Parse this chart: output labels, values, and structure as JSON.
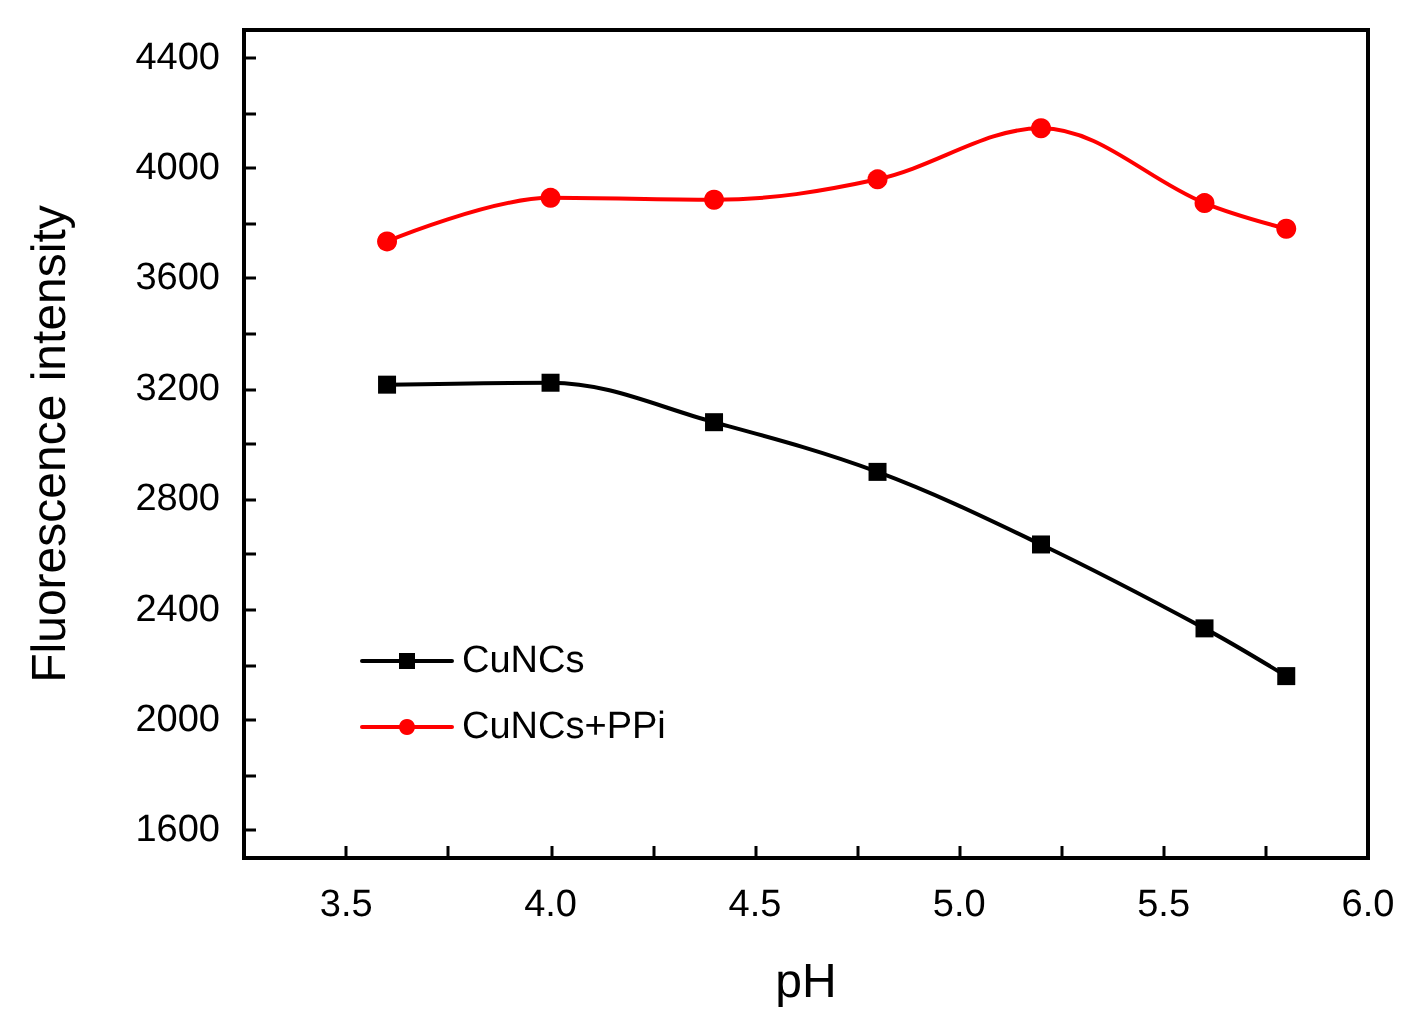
{
  "chart_data": {
    "type": "line",
    "xlabel": "pH",
    "ylabel": "Fluorescence intensity",
    "x": [
      3.6,
      4.0,
      4.4,
      4.8,
      5.2,
      5.6,
      5.8
    ],
    "series": [
      {
        "name": "CuNCs",
        "color": "#000000",
        "marker": "square",
        "values": [
          3215,
          3222,
          3079,
          2899,
          2636,
          2332,
          2159
        ]
      },
      {
        "name": "CuNCs+PPi",
        "color": "#ff0000",
        "marker": "circle",
        "values": [
          3734,
          3892,
          3885,
          3959,
          4144,
          3873,
          3780
        ]
      }
    ],
    "xlim": [
      3.25,
      6.0
    ],
    "xticks": [
      3.5,
      {
        "value": 3.75,
        "label": null
      },
      "4.0",
      {
        "value": 4.25,
        "label": null
      },
      4.5,
      {
        "value": 4.75,
        "label": null
      },
      "5.0",
      {
        "value": 5.25,
        "label": null
      },
      5.5,
      {
        "value": 5.75,
        "label": null
      },
      "6.0"
    ],
    "ylim": [
      1500,
      4500
    ],
    "yticks": [
      1600,
      {
        "value": 1800,
        "label": null
      },
      2000,
      {
        "value": 2200,
        "label": null
      },
      2400,
      {
        "value": 2600,
        "label": null
      },
      2800,
      {
        "value": 3000,
        "label": null
      },
      3200,
      {
        "value": 3400,
        "label": null
      },
      3600,
      {
        "value": 3800,
        "label": null
      },
      4000,
      {
        "value": 4200,
        "label": null
      },
      4400
    ],
    "grid": false,
    "legend": "bottom left",
    "line_style": "solid"
  }
}
